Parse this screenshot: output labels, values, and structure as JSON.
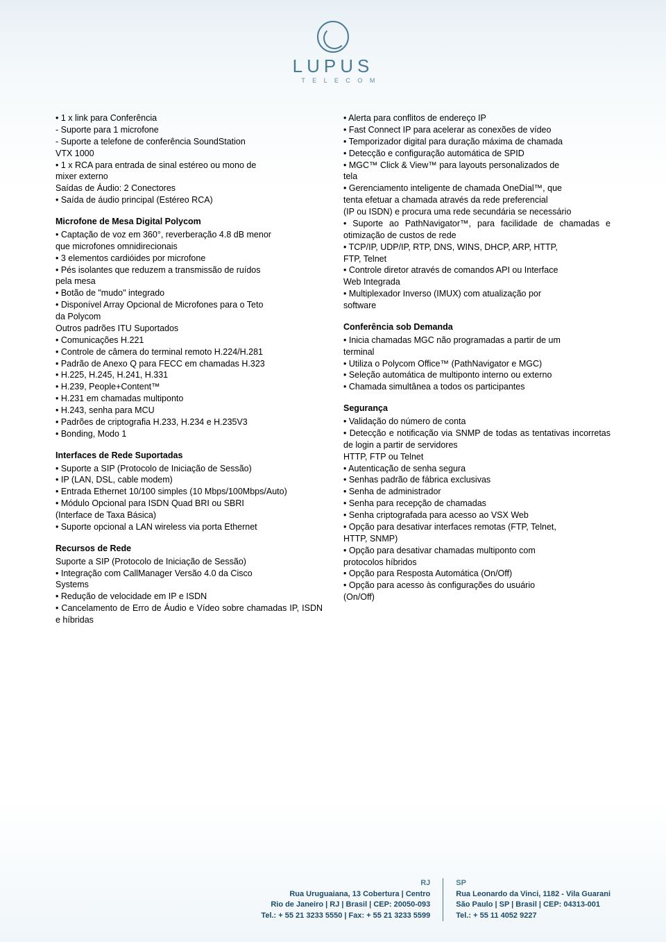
{
  "logo": {
    "name": "LUPUS",
    "sub": "T E L E C O M"
  },
  "left": {
    "s1_lines": [
      "• 1 x link para Conferência",
      "- Suporte para 1 microfone",
      "- Suporte a telefone de conferência SoundStation",
      "VTX 1000",
      "• 1 x RCA para entrada de sinal estéreo ou mono de",
      "mixer externo",
      "Saídas de Áudio: 2 Conectores",
      "• Saída de áudio principal (Estéreo RCA)"
    ],
    "s2_title": "Microfone de Mesa Digital Polycom",
    "s2_lines": [
      "• Captação de voz em 360°, reverberação 4.8 dB menor",
      "que microfones omnidirecionais",
      "• 3 elementos cardióides por microfone",
      "• Pés isolantes que reduzem a transmissão de ruídos",
      "pela mesa",
      "• Botão de \"mudo\" integrado",
      "• Disponível Array Opcional de Microfones para o Teto",
      "da Polycom",
      "Outros padrões ITU Suportados",
      "• Comunicações H.221",
      "• Controle de câmera do terminal remoto H.224/H.281",
      "• Padrão de Anexo Q para FECC em chamadas H.323",
      "• H.225, H.245, H.241, H.331",
      "• H.239, People+Content™",
      "• H.231 em chamadas multiponto",
      "• H.243, senha para MCU",
      "• Padrões de criptografia H.233, H.234 e H.235V3",
      "• Bonding, Modo 1"
    ],
    "s3_title": "Interfaces de Rede Suportadas",
    "s3_lines": [
      "• Suporte a SIP (Protocolo de Iniciação de Sessão)",
      "• IP (LAN, DSL, cable modem)",
      "• Entrada Ethernet 10/100 simples (10 Mbps/100Mbps/Auto)",
      "• Módulo Opcional para ISDN Quad BRI ou SBRI",
      "(Interface de Taxa Básica)",
      "• Suporte opcional a LAN wireless via porta Ethernet"
    ],
    "s4_title": "Recursos de Rede",
    "s4_lines": [
      "Suporte a SIP (Protocolo de Iniciação de Sessão)",
      "• Integração com CallManager Versão 4.0 da Cisco",
      "Systems",
      "• Redução de velocidade em IP e ISDN",
      "• Cancelamento de Erro de Áudio e Vídeo sobre chamadas IP, ISDN e híbridas"
    ]
  },
  "right": {
    "s1_lines": [
      "• Alerta para conflitos de endereço IP",
      "• Fast Connect IP para acelerar as conexões de vídeo",
      "• Temporizador digital para duração máxima de chamada",
      "• Detecção e configuração automática de SPID",
      "• MGC™ Click & View™ para layouts personalizados de",
      "tela",
      "• Gerenciamento inteligente de chamada OneDial™, que",
      "tenta efetuar a chamada através da rede preferencial",
      "(IP ou ISDN) e procura uma rede secundária se necessário",
      "• Suporte ao PathNavigator™, para facilidade de chamadas e otimização de custos de rede",
      "• TCP/IP, UDP/IP, RTP, DNS, WINS, DHCP, ARP, HTTP,",
      "FTP, Telnet",
      "• Controle diretor através de comandos API ou Interface",
      "Web Integrada",
      "• Multiplexador Inverso (IMUX) com atualização por",
      "software"
    ],
    "s2_title": "Conferência sob Demanda",
    "s2_lines": [
      "• Inicia chamadas MGC não programadas a partir de um",
      "terminal",
      "• Utiliza o Polycom Office™ (PathNavigator e MGC)",
      "• Seleção automática de multiponto interno ou externo",
      "• Chamada simultânea a todos os participantes"
    ],
    "s3_title": "Segurança",
    "s3_lines": [
      "• Validação do número de conta",
      "• Detecção e notificação via SNMP de todas as tentativas incorretas de login a partir de servidores",
      "HTTP, FTP ou Telnet",
      "• Autenticação de senha segura",
      "• Senhas padrão de fábrica exclusivas",
      "• Senha de administrador",
      "• Senha para recepção de chamadas",
      "• Senha criptografada para acesso ao VSX Web",
      "• Opção para desativar interfaces remotas (FTP, Telnet,",
      "HTTP, SNMP)",
      "• Opção para desativar chamadas multiponto com",
      "protocolos híbridos",
      "• Opção para Resposta Automática (On/Off)",
      "• Opção para acesso às configurações do usuário",
      "(On/Off)"
    ]
  },
  "footer": {
    "left": {
      "hd": "RJ",
      "l1": "Rua Uruguaiana, 13 Cobertura | Centro",
      "l2": "Rio de Janeiro | RJ | Brasil | CEP: 20050-093",
      "l3": "Tel.: + 55 21 3233 5550 | Fax: + 55 21 3233 5599"
    },
    "right": {
      "hd": "SP",
      "l1": "Rua Leonardo da Vinci, 1182 - Vila Guarani",
      "l2": "São Paulo | SP | Brasil | CEP: 04313-001",
      "l3": "Tel.: + 55 11 4052 9227"
    }
  }
}
